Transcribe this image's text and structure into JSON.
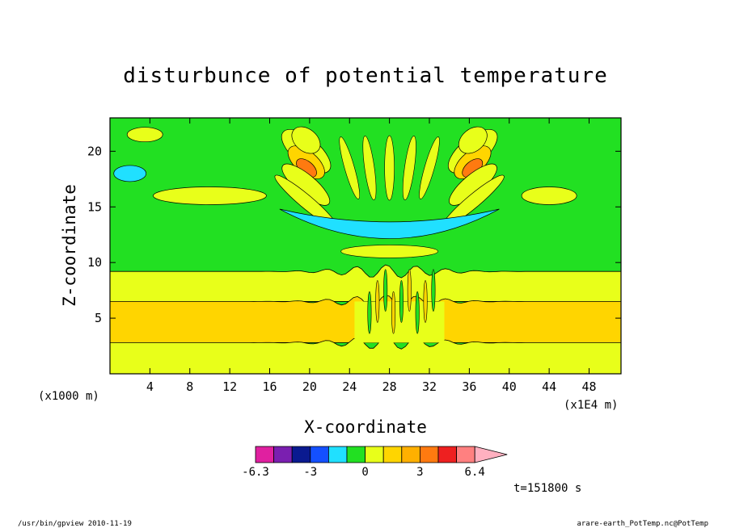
{
  "chart_data": {
    "type": "heatmap",
    "title": "disturbunce of potential temperature",
    "xlabel": "X-coordinate",
    "ylabel": "Z-coordinate",
    "x_unit_label_left": "(x1000 m)",
    "x_unit_label_right": "(x1E4 m)",
    "x_ticks": [
      4,
      8,
      12,
      16,
      20,
      24,
      28,
      32,
      36,
      40,
      44,
      48
    ],
    "y_ticks": [
      5,
      10,
      15,
      20
    ],
    "xlim": [
      0,
      51.2
    ],
    "ylim": [
      0,
      23
    ],
    "time_label": "t=151800 s",
    "colorbar": {
      "labels": [
        "-6.3",
        "-3",
        "0",
        "3",
        "6.4"
      ],
      "colors": [
        "#e020a0",
        "#7a1fb0",
        "#0a1a90",
        "#1450ff",
        "#20e0ff",
        "#22e022",
        "#e8ff1a",
        "#ffd500",
        "#ffb000",
        "#ff7a10",
        "#ee2020",
        "#ff8080",
        "#ffb0c0"
      ]
    },
    "background_level_color": "#22e022",
    "bands": [
      {
        "z_from": 0,
        "z_to": 2.8,
        "color": "#e8ff1a"
      },
      {
        "z_from": 2.8,
        "z_to": 6.5,
        "color": "#ffd500"
      },
      {
        "z_from": 6.5,
        "z_to": 9.2,
        "color": "#e8ff1a"
      }
    ]
  },
  "footer": {
    "left": "/usr/bin/gpview   2010-11-19",
    "right": "arare-earth_PotTemp.nc@PotTemp"
  }
}
